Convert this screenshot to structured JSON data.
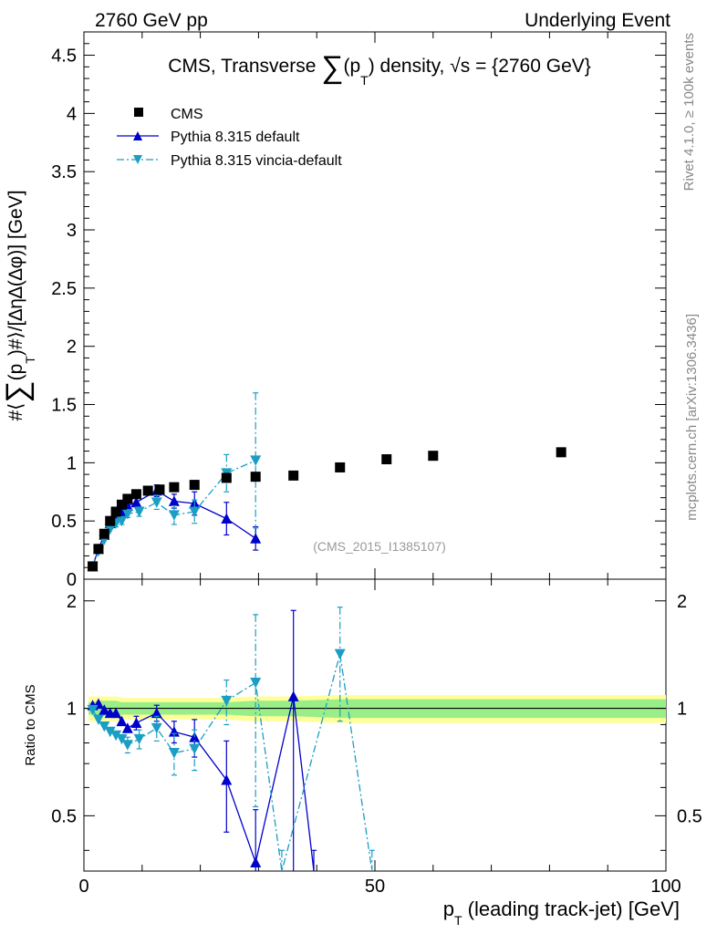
{
  "header": {
    "left": "2760 GeV pp",
    "right": "Underlying Event"
  },
  "side_labels": {
    "rivet": "Rivet 4.1.0, ≥ 100k events",
    "mcplots": "mcplots.cern.ch [arXiv:1306.3436]"
  },
  "colors": {
    "cms": "#000000",
    "pythia_default": "#0000cc",
    "pythia_vincia": "#1a9ec4",
    "band_inner": "#99ee88",
    "band_outer": "#ffff99"
  },
  "chart_data": {
    "type": "scatter",
    "title": "CMS, Transverse ∑(p_T) density, √s = {2760 GeV}",
    "title_parts": {
      "prefix": "CMS, Transverse ",
      "sum": "∑",
      "mid": "(p",
      "sub": "T",
      "suffix": ") density, ",
      "sqrt": "√",
      "s_eq": "s = {2760 GeV}"
    },
    "analysis_tag": "(CMS_2015_I1385107)",
    "ylabel": "#⟨∑(p_T)#⟩/[∆η∆(∆φ)] [GeV]",
    "ylabel_parts": {
      "a": "#⟨",
      "sum": "∑",
      "b": "(p",
      "sub": "T",
      "c": ")#⟩/[∆η∆(∆φ)] [GeV]"
    },
    "xlabel": "p_T (leading track-jet) [GeV]",
    "xlabel_parts": {
      "p": "p",
      "sub": "T",
      "rest": " (leading track-jet) [GeV]"
    },
    "ratio_ylabel": "Ratio to CMS",
    "xlim": [
      0,
      100
    ],
    "ylim": [
      0,
      4.7
    ],
    "ratio_ylim": [
      0.35,
      2.3
    ],
    "x_ticks": [
      "0",
      "50",
      "100"
    ],
    "y_ticks": [
      "0",
      "0.5",
      "1",
      "1.5",
      "2",
      "2.5",
      "3",
      "3.5",
      "4",
      "4.5"
    ],
    "ratio_y_ticks": [
      "0.5",
      "1",
      "2"
    ],
    "legend": [
      "CMS",
      "Pythia 8.315 default",
      "Pythia 8.315 vincia-default"
    ],
    "legend_position": "top-left",
    "series": [
      {
        "name": "CMS",
        "x": [
          1.5,
          2.5,
          3.5,
          4.5,
          5.5,
          6.5,
          7.5,
          9.0,
          11.0,
          13.0,
          15.5,
          19.0,
          24.5,
          29.5,
          36.0,
          44.0,
          52.0,
          60.0,
          82.0
        ],
        "y": [
          0.11,
          0.26,
          0.39,
          0.5,
          0.58,
          0.64,
          0.69,
          0.73,
          0.76,
          0.77,
          0.79,
          0.81,
          0.87,
          0.88,
          0.89,
          0.96,
          1.03,
          1.06,
          1.09
        ],
        "band_lo": [
          0.96,
          0.95,
          0.95,
          0.95,
          0.95,
          0.96,
          0.96,
          0.96,
          0.96,
          0.96,
          0.96,
          0.96,
          0.96,
          0.95,
          0.95,
          0.94,
          0.94,
          0.94,
          0.94
        ],
        "band_hi": [
          1.04,
          1.05,
          1.05,
          1.05,
          1.05,
          1.04,
          1.04,
          1.04,
          1.04,
          1.04,
          1.04,
          1.04,
          1.04,
          1.05,
          1.05,
          1.06,
          1.06,
          1.06,
          1.06
        ],
        "band_lo2": [
          0.92,
          0.92,
          0.92,
          0.92,
          0.92,
          0.93,
          0.93,
          0.93,
          0.93,
          0.93,
          0.93,
          0.93,
          0.93,
          0.92,
          0.92,
          0.91,
          0.91,
          0.91,
          0.91
        ],
        "band_hi2": [
          1.08,
          1.08,
          1.08,
          1.08,
          1.08,
          1.07,
          1.07,
          1.07,
          1.07,
          1.07,
          1.07,
          1.07,
          1.07,
          1.08,
          1.08,
          1.09,
          1.09,
          1.09,
          1.09
        ]
      },
      {
        "name": "Pythia 8.315 default",
        "x": [
          1.5,
          2.5,
          3.5,
          4.5,
          5.5,
          6.5,
          7.5,
          9.0,
          12.5,
          15.5,
          19.0,
          24.5,
          29.5
        ],
        "y": [
          0.11,
          0.26,
          0.38,
          0.48,
          0.56,
          0.58,
          0.63,
          0.66,
          0.76,
          0.67,
          0.65,
          0.52,
          0.35
        ],
        "err": [
          0.01,
          0.02,
          0.02,
          0.02,
          0.03,
          0.03,
          0.03,
          0.04,
          0.05,
          0.06,
          0.1,
          0.14,
          0.1
        ],
        "ratio_x": [
          1.5,
          2.5,
          3.5,
          4.5,
          5.5,
          6.5,
          7.5,
          9.0,
          12.5,
          15.5,
          19.0,
          24.5,
          29.5,
          36.0,
          39.5
        ],
        "ratio": [
          1.02,
          1.03,
          0.99,
          0.97,
          0.97,
          0.92,
          0.88,
          0.91,
          0.97,
          0.86,
          0.83,
          0.63,
          0.37,
          1.08,
          0.35
        ],
        "ratio_err": [
          0.02,
          0.02,
          0.02,
          0.02,
          0.03,
          0.03,
          0.03,
          0.04,
          0.05,
          0.06,
          0.1,
          0.18,
          0.15,
          0.8,
          0.05
        ]
      },
      {
        "name": "Pythia 8.315 vincia-default",
        "x": [
          1.5,
          2.5,
          3.5,
          4.5,
          5.5,
          6.5,
          7.5,
          9.5,
          12.5,
          15.5,
          19.0,
          24.5,
          29.5
        ],
        "y": [
          0.11,
          0.24,
          0.34,
          0.43,
          0.48,
          0.5,
          0.56,
          0.58,
          0.66,
          0.55,
          0.58,
          0.91,
          1.02
        ],
        "err": [
          0.01,
          0.02,
          0.02,
          0.02,
          0.03,
          0.03,
          0.03,
          0.04,
          0.06,
          0.08,
          0.1,
          0.16,
          0.58
        ],
        "ratio_x": [
          1.5,
          2.5,
          3.5,
          4.5,
          5.5,
          6.5,
          7.5,
          9.5,
          12.5,
          15.5,
          19.0,
          24.5,
          29.5,
          34.0,
          44.0,
          49.5
        ],
        "ratio": [
          0.99,
          0.93,
          0.89,
          0.86,
          0.84,
          0.82,
          0.79,
          0.82,
          0.88,
          0.75,
          0.77,
          1.05,
          1.18,
          0.35,
          1.42,
          0.35
        ],
        "ratio_err": [
          0.02,
          0.02,
          0.02,
          0.03,
          0.03,
          0.03,
          0.04,
          0.05,
          0.07,
          0.1,
          0.1,
          0.15,
          0.65,
          0.05,
          0.5,
          0.05
        ]
      }
    ]
  }
}
